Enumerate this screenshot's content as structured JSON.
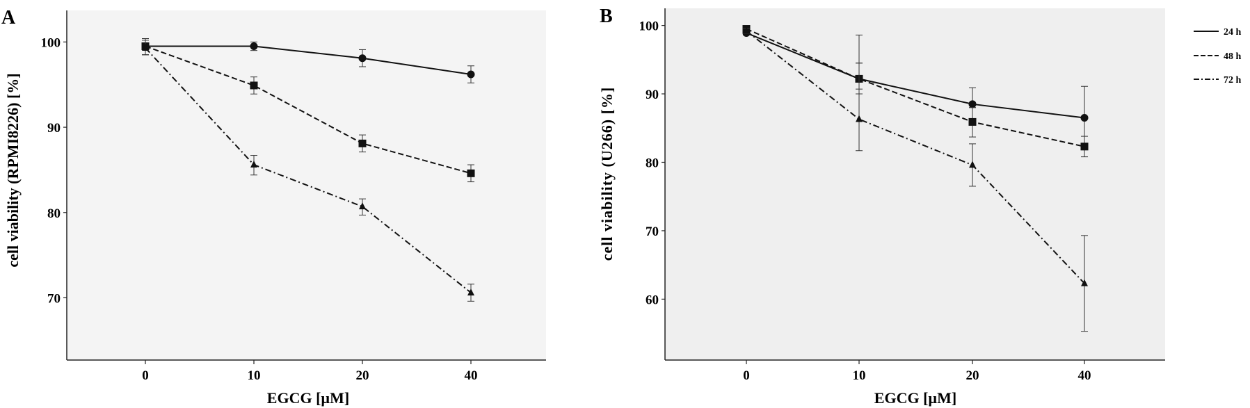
{
  "chart_data": [
    {
      "type": "line",
      "panel_label": "A",
      "title": "",
      "xlabel": "EGCG [µM]",
      "ylabel": "cell viability (RPMI8226) [%]",
      "categories": [
        "0",
        "10",
        "20",
        "40"
      ],
      "x_ticks": [
        "0",
        "10",
        "20",
        "40"
      ],
      "y_ticks": [
        "100",
        "90",
        "80",
        "70"
      ],
      "y_tick_values": [
        100,
        90,
        80,
        70
      ],
      "ylim": [
        62.7,
        103.7
      ],
      "grid": false,
      "background": "#f4f4f4",
      "series": [
        {
          "name": "24 h",
          "style": "solid",
          "marker": "circle",
          "values": [
            99.5,
            99.5,
            98.1,
            96.2
          ],
          "err_low": [
            98.5,
            99.0,
            97.1,
            95.2
          ],
          "err_high": [
            100.4,
            100.0,
            99.1,
            97.2
          ]
        },
        {
          "name": "48 h",
          "style": "dashed",
          "marker": "square",
          "values": [
            99.5,
            94.9,
            88.1,
            84.6
          ],
          "err_low": [
            98.5,
            93.9,
            87.1,
            83.6
          ],
          "err_high": [
            100.4,
            95.9,
            89.1,
            85.6
          ]
        },
        {
          "name": "72 h",
          "style": "dashdot",
          "marker": "triangle",
          "values": [
            99.3,
            85.6,
            80.7,
            70.6
          ],
          "err_low": [
            98.5,
            84.4,
            79.7,
            69.6
          ],
          "err_high": [
            100.2,
            86.7,
            81.6,
            71.6
          ]
        }
      ]
    },
    {
      "type": "line",
      "panel_label": "B",
      "title": "",
      "xlabel": "EGCG [µM]",
      "ylabel": "cell viability (U266) [%]",
      "categories": [
        "0",
        "10",
        "20",
        "40"
      ],
      "x_ticks": [
        "0",
        "10",
        "20",
        "40"
      ],
      "y_ticks": [
        "100",
        "90",
        "80",
        "70",
        "60"
      ],
      "y_tick_values": [
        100,
        90,
        80,
        70,
        60
      ],
      "ylim": [
        51.1,
        102.5
      ],
      "grid": false,
      "background": "#efefef",
      "legend": {
        "placement": "right-outside",
        "entries": [
          "24 h",
          "48 h",
          "72 h"
        ]
      },
      "series": [
        {
          "name": "24 h",
          "style": "solid",
          "marker": "circle",
          "values": [
            98.9,
            92.2,
            88.5,
            86.5
          ],
          "err_low": [
            98.6,
            90.0,
            88.0,
            81.9
          ],
          "err_high": [
            99.2,
            94.5,
            90.9,
            91.1
          ]
        },
        {
          "name": "48 h",
          "style": "dashed",
          "marker": "square",
          "values": [
            99.5,
            92.2,
            85.9,
            82.3
          ],
          "err_low": [
            99.1,
            90.7,
            83.7,
            80.8
          ],
          "err_high": [
            99.9,
            94.5,
            88.0,
            83.8
          ]
        },
        {
          "name": "72 h",
          "style": "dashdot",
          "marker": "triangle",
          "values": [
            99.2,
            86.3,
            79.6,
            62.3
          ],
          "err_low": [
            98.8,
            81.7,
            76.5,
            55.3
          ],
          "err_high": [
            99.6,
            98.6,
            82.7,
            69.3
          ]
        }
      ]
    }
  ]
}
